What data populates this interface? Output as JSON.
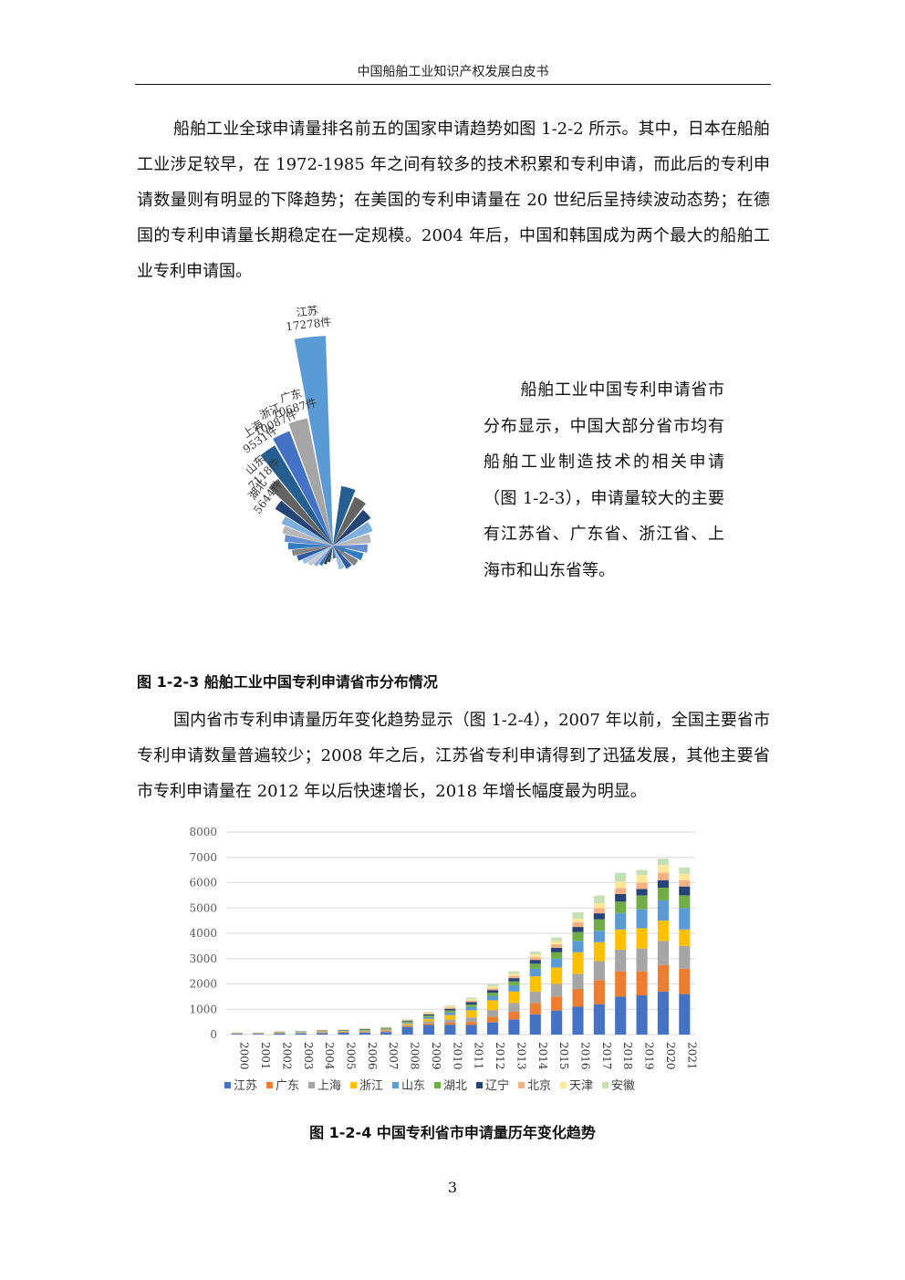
{
  "header": {
    "title": "中国船舶工业知识产权发展白皮书"
  },
  "paragraphs": {
    "p1": "船舶工业全球申请量排名前五的国家申请趋势如图 1-2-2 所示。其中，日本在船舶工业涉足较早，在 1972-1985 年之间有较多的技术积累和专利申请，而此后的专利申请数量则有明显的下降趋势；在美国的专利申请量在 20 世纪后呈持续波动态势；在德国的专利申请量长期稳定在一定规模。2004 年后，中国和韩国成为两个最大的船舶工业专利申请国。",
    "side": "船舶工业中国专利申请省市分布显示，中国大部分省市均有船舶工业制造技术的相关申请（图 1-2-3），申请量较大的主要有江苏省、广东省、浙江省、上海市和山东省等。",
    "p2": "国内省市专利申请量历年变化趋势显示（图 1-2-4），2007 年以前，全国主要省市专利申请数量普遍较少；2008 年之后，江苏省专利申请得到了迅猛发展，其他主要省市专利申请量在 2012 年以后快速增长，2018 年增长幅度最为明显。"
  },
  "captions": {
    "fig3": "图 1-2-3  船舶工业中国专利申请省市分布情况",
    "fig4": "图 1-2-4  中国专利省市申请量历年变化趋势"
  },
  "page_number": "3",
  "chart_data": [
    {
      "type": "bar",
      "subtype": "radial-bar",
      "categories": [
        "江苏",
        "广东",
        "浙江",
        "上海",
        "山东",
        "湖北"
      ],
      "value_labels": [
        "17278件",
        "10687件",
        "10087件",
        "9531件",
        "7118件",
        "5644件"
      ],
      "values": [
        17278,
        10687,
        10087,
        9531,
        7118,
        5644
      ],
      "minor_values": [
        4600,
        4300,
        4000,
        3700,
        3400,
        3100,
        2800,
        2500,
        2200,
        1900,
        1650,
        1400,
        1200,
        1000,
        850,
        700,
        560,
        440,
        330,
        240,
        160,
        100
      ],
      "colors": [
        "#5b9bd5",
        "#a5a5a5",
        "#4472c4",
        "#255e91",
        "#636363",
        "#264478",
        "#7cafdd",
        "#b7b7b7",
        "#698ed0",
        "#327dc2",
        "#848484",
        "#335aa1",
        "#9dc3e6",
        "#c9c9c9",
        "#8faadc",
        "#2e75b6",
        "#3b3838",
        "#203864",
        "#bdd7ee",
        "#595959",
        "#4472c4",
        "#1f4e79"
      ]
    },
    {
      "type": "bar",
      "subtype": "stacked",
      "categories": [
        "2000",
        "2001",
        "2002",
        "2003",
        "2004",
        "2005",
        "2006",
        "2007",
        "2008",
        "2009",
        "2010",
        "2011",
        "2012",
        "2013",
        "2014",
        "2015",
        "2016",
        "2017",
        "2018",
        "2019",
        "2020",
        "2021"
      ],
      "ylim": [
        0,
        8000
      ],
      "yticks": [
        0,
        1000,
        2000,
        3000,
        4000,
        5000,
        6000,
        7000,
        8000
      ],
      "grid": true,
      "legend_position": "bottom",
      "series": [
        {
          "name": "江苏",
          "color": "#4472c4",
          "values": [
            30,
            30,
            40,
            50,
            60,
            70,
            80,
            100,
            300,
            380,
            390,
            380,
            480,
            600,
            800,
            950,
            1100,
            1200,
            1500,
            1550,
            1700,
            1600
          ]
        },
        {
          "name": "广东",
          "color": "#ed7d31",
          "values": [
            10,
            10,
            15,
            15,
            20,
            20,
            25,
            30,
            40,
            60,
            80,
            120,
            220,
            300,
            450,
            550,
            700,
            950,
            1000,
            950,
            1050,
            1000
          ]
        },
        {
          "name": "上海",
          "color": "#a5a5a5",
          "values": [
            10,
            10,
            15,
            20,
            25,
            25,
            30,
            35,
            50,
            80,
            120,
            180,
            270,
            350,
            450,
            500,
            600,
            750,
            850,
            900,
            950,
            900
          ]
        },
        {
          "name": "浙江",
          "color": "#ffc000",
          "values": [
            10,
            10,
            15,
            15,
            20,
            20,
            25,
            30,
            50,
            100,
            180,
            280,
            380,
            450,
            600,
            650,
            850,
            750,
            800,
            800,
            800,
            650
          ]
        },
        {
          "name": "山东",
          "color": "#5b9bd5",
          "values": [
            5,
            5,
            10,
            10,
            15,
            15,
            20,
            25,
            40,
            70,
            100,
            130,
            180,
            250,
            300,
            350,
            450,
            450,
            650,
            750,
            800,
            850
          ]
        },
        {
          "name": "湖北",
          "color": "#70ad47",
          "values": [
            5,
            5,
            10,
            10,
            15,
            15,
            20,
            25,
            40,
            60,
            80,
            100,
            120,
            150,
            200,
            250,
            350,
            450,
            450,
            550,
            500,
            500
          ]
        },
        {
          "name": "辽宁",
          "color": "#264478",
          "values": [
            5,
            5,
            10,
            10,
            15,
            15,
            20,
            20,
            30,
            50,
            70,
            90,
            110,
            130,
            150,
            180,
            200,
            240,
            300,
            250,
            300,
            350
          ]
        },
        {
          "name": "北京",
          "color": "#f4b183",
          "values": [
            5,
            5,
            5,
            5,
            10,
            10,
            10,
            15,
            20,
            40,
            50,
            60,
            70,
            90,
            110,
            140,
            180,
            200,
            240,
            250,
            300,
            250
          ]
        },
        {
          "name": "天津",
          "color": "#ffe699",
          "values": [
            5,
            5,
            5,
            5,
            5,
            10,
            10,
            15,
            20,
            30,
            40,
            60,
            70,
            80,
            100,
            120,
            150,
            200,
            250,
            300,
            300,
            250
          ]
        },
        {
          "name": "安徽",
          "color": "#c5e0b3",
          "values": [
            5,
            5,
            5,
            5,
            5,
            10,
            10,
            10,
            20,
            30,
            40,
            60,
            80,
            100,
            120,
            150,
            250,
            300,
            350,
            200,
            250,
            250
          ]
        }
      ]
    }
  ]
}
